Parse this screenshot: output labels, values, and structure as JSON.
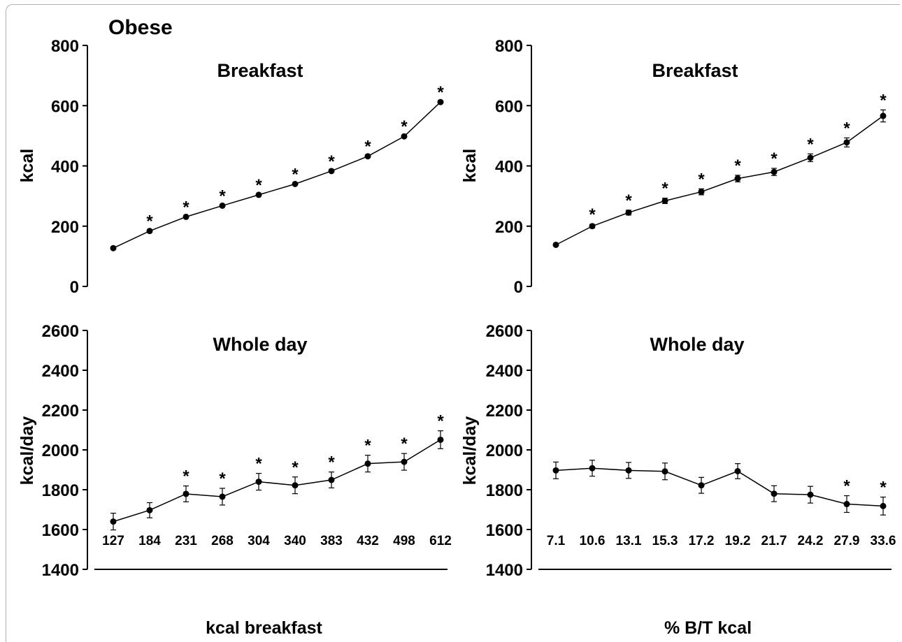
{
  "figure_label": "Obese",
  "colors": {
    "line": "#000000",
    "background": "#ffffff",
    "frame": "#b0b0b0"
  },
  "chart_data": [
    {
      "type": "line",
      "title": "Breakfast",
      "ylabel": "kcal",
      "xlabel": "",
      "ylim": [
        0,
        800
      ],
      "yticks": [
        "0",
        "200",
        "400",
        "600",
        "800"
      ],
      "categories": [
        "127",
        "184",
        "231",
        "268",
        "304",
        "340",
        "383",
        "432",
        "498",
        "612"
      ],
      "show_category_labels": false,
      "values": [
        127,
        184,
        231,
        268,
        304,
        340,
        383,
        432,
        498,
        612
      ],
      "errors": [
        0,
        0,
        0,
        0,
        0,
        0,
        0,
        0,
        0,
        0
      ],
      "significant": [
        false,
        true,
        true,
        true,
        true,
        true,
        true,
        true,
        true,
        true
      ],
      "significance_marker": "*"
    },
    {
      "type": "line",
      "title": "Breakfast",
      "ylabel": "kcal",
      "xlabel": "",
      "ylim": [
        0,
        800
      ],
      "yticks": [
        "0",
        "200",
        "400",
        "600",
        "800"
      ],
      "categories": [
        "7.1",
        "10.6",
        "13.1",
        "15.3",
        "17.2",
        "19.2",
        "21.7",
        "24.2",
        "27.9",
        "33.6"
      ],
      "show_category_labels": false,
      "values": [
        138,
        200,
        245,
        284,
        314,
        358,
        380,
        427,
        478,
        566
      ],
      "errors": [
        0,
        6,
        8,
        9,
        10,
        11,
        12,
        13,
        15,
        20
      ],
      "significant": [
        false,
        true,
        true,
        true,
        true,
        true,
        true,
        true,
        true,
        true
      ],
      "significance_marker": "*"
    },
    {
      "type": "line",
      "title": "Whole day",
      "ylabel": "kcal/day",
      "xlabel": "kcal breakfast",
      "ylim": [
        1400,
        2600
      ],
      "yticks": [
        "1400",
        "1600",
        "1800",
        "2000",
        "2200",
        "2400",
        "2600"
      ],
      "categories": [
        "127",
        "184",
        "231",
        "268",
        "304",
        "340",
        "383",
        "432",
        "498",
        "612"
      ],
      "show_category_labels": true,
      "values": [
        1640,
        1697,
        1779,
        1765,
        1840,
        1822,
        1849,
        1931,
        1940,
        2051
      ],
      "errors": [
        42,
        38,
        40,
        42,
        42,
        42,
        40,
        42,
        42,
        45
      ],
      "significant": [
        false,
        false,
        true,
        true,
        true,
        true,
        true,
        true,
        true,
        true
      ],
      "significance_marker": "*"
    },
    {
      "type": "line",
      "title": "Whole day",
      "ylabel": "kcal/day",
      "xlabel": "% B/T kcal",
      "ylim": [
        1400,
        2600
      ],
      "yticks": [
        "1400",
        "1600",
        "1800",
        "2000",
        "2200",
        "2400",
        "2600"
      ],
      "categories": [
        "7.1",
        "10.6",
        "13.1",
        "15.3",
        "17.2",
        "19.2",
        "21.7",
        "24.2",
        "27.9",
        "33.6"
      ],
      "show_category_labels": true,
      "values": [
        1897,
        1908,
        1897,
        1892,
        1822,
        1893,
        1780,
        1775,
        1728,
        1718
      ],
      "errors": [
        42,
        40,
        40,
        42,
        40,
        38,
        40,
        42,
        42,
        45
      ],
      "significant": [
        false,
        false,
        false,
        false,
        false,
        false,
        false,
        false,
        true,
        true
      ],
      "significance_marker": "*"
    }
  ]
}
